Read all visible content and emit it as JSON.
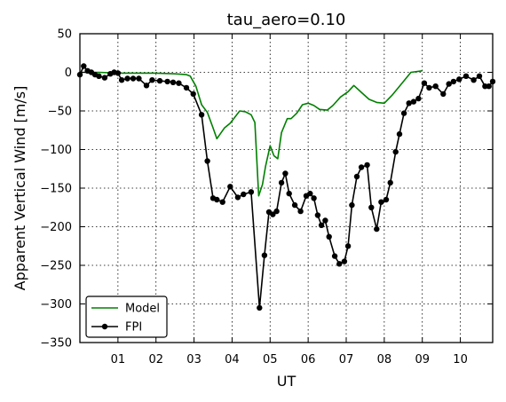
{
  "chart_data": {
    "type": "line",
    "title": "tau_aero=0.10",
    "xlabel": "UT",
    "ylabel": "Apparent Vertical Wind [m/s]",
    "xlim": [
      0,
      10.85
    ],
    "ylim": [
      -350,
      50
    ],
    "x_ticks": [
      1,
      2,
      3,
      4,
      5,
      6,
      7,
      8,
      9,
      10
    ],
    "x_tick_labels": [
      "01",
      "02",
      "03",
      "04",
      "05",
      "06",
      "07",
      "08",
      "09",
      "10"
    ],
    "y_ticks": [
      50,
      0,
      -50,
      -100,
      -150,
      -200,
      -250,
      -300,
      -350
    ],
    "y_tick_labels": [
      "50",
      "0",
      "−50",
      "−100",
      "−150",
      "−200",
      "−250",
      "−300",
      "−350"
    ],
    "grid": true,
    "legend": "lower-left",
    "series": [
      {
        "name": "Model",
        "color": "#008000",
        "marker": "none",
        "x": [
          0.0,
          0.5,
          1.0,
          2.0,
          2.5,
          2.8,
          2.9,
          3.05,
          3.2,
          3.35,
          3.5,
          3.6,
          3.8,
          3.95,
          4.2,
          4.35,
          4.5,
          4.6,
          4.7,
          4.8,
          4.88,
          5.0,
          5.1,
          5.2,
          5.3,
          5.45,
          5.55,
          5.7,
          5.85,
          6.0,
          6.15,
          6.3,
          6.5,
          6.65,
          6.85,
          7.05,
          7.2,
          7.4,
          7.6,
          7.8,
          8.0,
          8.2,
          8.4,
          8.6,
          8.7,
          9.0
        ],
        "y": [
          0,
          0,
          -1,
          -1,
          -2,
          -3,
          -5,
          -18,
          -42,
          -52,
          -72,
          -86,
          -72,
          -66,
          -50,
          -51,
          -55,
          -65,
          -160,
          -145,
          -122,
          -95,
          -108,
          -112,
          -78,
          -60,
          -60,
          -53,
          -42,
          -40,
          -43,
          -48,
          -49,
          -43,
          -32,
          -25,
          -17,
          -26,
          -35,
          -39,
          -40,
          -30,
          -18,
          -6,
          0,
          2
        ]
      },
      {
        "name": "FPI",
        "color": "#000000",
        "marker": "circle",
        "x": [
          0.0,
          0.1,
          0.2,
          0.3,
          0.4,
          0.5,
          0.65,
          0.8,
          0.9,
          1.0,
          1.1,
          1.25,
          1.4,
          1.55,
          1.75,
          1.9,
          2.1,
          2.3,
          2.45,
          2.6,
          2.8,
          2.98,
          3.2,
          3.35,
          3.5,
          3.6,
          3.75,
          3.95,
          4.15,
          4.3,
          4.5,
          4.72,
          4.85,
          4.97,
          5.07,
          5.17,
          5.3,
          5.4,
          5.5,
          5.65,
          5.8,
          5.95,
          6.05,
          6.15,
          6.25,
          6.35,
          6.45,
          6.55,
          6.7,
          6.82,
          6.95,
          7.05,
          7.15,
          7.28,
          7.4,
          7.55,
          7.66,
          7.8,
          7.92,
          8.05,
          8.16,
          8.3,
          8.4,
          8.52,
          8.65,
          8.77,
          8.9,
          9.05,
          9.18,
          9.35,
          9.55,
          9.7,
          9.82,
          9.97,
          10.15,
          10.35,
          10.5,
          10.65,
          10.75,
          10.85
        ],
        "y": [
          -3,
          8,
          2,
          0,
          -3,
          -5,
          -7,
          -2,
          0,
          -1,
          -10,
          -8,
          -8,
          -8,
          -17,
          -10,
          -11,
          -12,
          -13,
          -14,
          -20,
          -28,
          -55,
          -115,
          -163,
          -165,
          -168,
          -148,
          -162,
          -158,
          -155,
          -305,
          -237,
          -181,
          -184,
          -180,
          -143,
          -131,
          -157,
          -172,
          -180,
          -160,
          -157,
          -163,
          -185,
          -198,
          -192,
          -213,
          -238,
          -248,
          -245,
          -225,
          -172,
          -135,
          -123,
          -120,
          -175,
          -203,
          -168,
          -165,
          -143,
          -103,
          -80,
          -53,
          -40,
          -38,
          -34,
          -14,
          -20,
          -18,
          -28,
          -15,
          -12,
          -9,
          -5,
          -10,
          -5,
          -18,
          -18,
          -12
        ]
      }
    ]
  }
}
